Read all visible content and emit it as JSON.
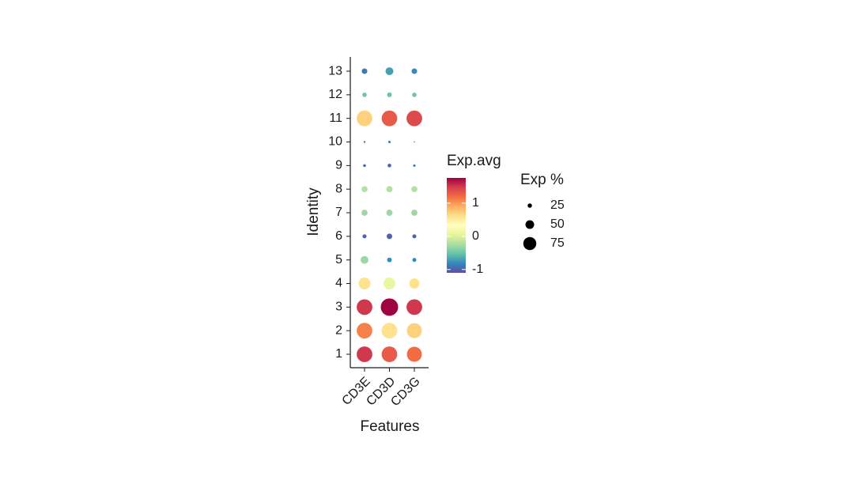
{
  "chart_data": {
    "type": "dotplot",
    "x_label": "Features",
    "y_label": "Identity",
    "categories": [
      "CD3E",
      "CD3D",
      "CD3G"
    ],
    "rows": [
      {
        "identity": "1",
        "exp_avg": [
          1.5,
          1.3,
          1.2
        ],
        "exp_pct": [
          90,
          90,
          86
        ]
      },
      {
        "identity": "2",
        "exp_avg": [
          1.1,
          0.6,
          0.7
        ],
        "exp_pct": [
          90,
          90,
          86
        ]
      },
      {
        "identity": "3",
        "exp_avg": [
          1.5,
          1.75,
          1.5
        ],
        "exp_pct": [
          90,
          100,
          90
        ]
      },
      {
        "identity": "4",
        "exp_avg": [
          0.6,
          0.1,
          0.6
        ],
        "exp_pct": [
          68,
          68,
          59
        ]
      },
      {
        "identity": "5",
        "exp_avg": [
          -0.3,
          -0.8,
          -0.8
        ],
        "exp_pct": [
          45,
          27,
          23
        ]
      },
      {
        "identity": "6",
        "exp_avg": [
          -1,
          -1,
          -1
        ],
        "exp_pct": [
          23,
          32,
          23
        ]
      },
      {
        "identity": "7",
        "exp_avg": [
          -0.3,
          -0.3,
          -0.3
        ],
        "exp_pct": [
          35,
          36,
          35
        ]
      },
      {
        "identity": "8",
        "exp_avg": [
          -0.2,
          -0.2,
          -0.2
        ],
        "exp_pct": [
          35,
          36,
          35
        ]
      },
      {
        "identity": "9",
        "exp_avg": [
          -1,
          -1,
          -0.9
        ],
        "exp_pct": [
          16,
          21,
          14
        ]
      },
      {
        "identity": "10",
        "exp_avg": [
          -1,
          -0.9,
          -0.9
        ],
        "exp_pct": [
          11,
          14,
          7
        ]
      },
      {
        "identity": "11",
        "exp_avg": [
          0.7,
          1.3,
          1.4
        ],
        "exp_pct": [
          90,
          90,
          90
        ]
      },
      {
        "identity": "12",
        "exp_avg": [
          -0.5,
          -0.5,
          -0.5
        ],
        "exp_pct": [
          25,
          27,
          25
        ]
      },
      {
        "identity": "13",
        "exp_avg": [
          -0.9,
          -0.7,
          -0.8
        ],
        "exp_pct": [
          32,
          45,
          32
        ]
      }
    ],
    "color_legend": {
      "title": "Exp.avg",
      "lim": [
        -1.1,
        1.76
      ],
      "ticks": [
        -1,
        0,
        1
      ],
      "colors": [
        "#5e4fa2",
        "#3288bd",
        "#66c2a5",
        "#abdda4",
        "#e6f598",
        "#ffffbf",
        "#fee08b",
        "#fdae61",
        "#f46d43",
        "#d53e4f",
        "#9e0142"
      ]
    },
    "size_legend": {
      "title": "Exp %",
      "values": [
        25,
        50,
        75
      ]
    }
  }
}
